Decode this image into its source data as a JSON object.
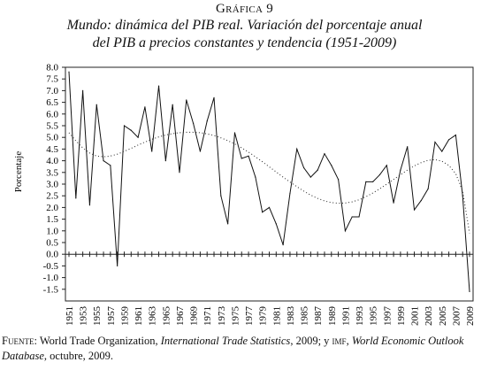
{
  "figure": {
    "label": "Gráfica 9",
    "title_line1": "Mundo: dinámica del PIB real. Variación del porcentaje anual",
    "title_line2": "del PIB a precios constantes y tendencia (1951-2009)"
  },
  "source": {
    "label": "Fuente:",
    "part1": " World Trade Organization, ",
    "italic1": "International Trade Statistics",
    "part2": ", 2009; y ",
    "org2": "imf",
    "part3": ", ",
    "italic2": "World Economic Outlook Database",
    "part4": ", octubre, 2009."
  },
  "chart_data": {
    "type": "line",
    "title": "",
    "ylabel": "Porcentaje",
    "xlabel": "",
    "ylim": [
      -2.0,
      8.0
    ],
    "ytick_labels": [
      "8.0",
      "7.5",
      "7.0",
      "6.5",
      "6.0",
      "5.5",
      "5.0",
      "4.5",
      "4.0",
      "3.5",
      "3.0",
      "2.5",
      "2.0",
      "1.5",
      "1.0",
      "0.5",
      "0.0",
      "-0.5",
      "-1.0",
      "-1.5"
    ],
    "ytick_values": [
      8.0,
      7.5,
      7.0,
      6.5,
      6.0,
      5.5,
      5.0,
      4.5,
      4.0,
      3.5,
      3.0,
      2.5,
      2.0,
      1.5,
      1.0,
      0.5,
      0.0,
      -0.5,
      -1.0,
      -1.5
    ],
    "x": [
      1951,
      1952,
      1953,
      1954,
      1955,
      1956,
      1957,
      1958,
      1959,
      1960,
      1961,
      1962,
      1963,
      1964,
      1965,
      1966,
      1967,
      1968,
      1969,
      1970,
      1971,
      1972,
      1973,
      1974,
      1975,
      1976,
      1977,
      1978,
      1979,
      1980,
      1981,
      1982,
      1983,
      1984,
      1985,
      1986,
      1987,
      1988,
      1989,
      1990,
      1991,
      1992,
      1993,
      1994,
      1995,
      1996,
      1997,
      1998,
      1999,
      2000,
      2001,
      2002,
      2003,
      2004,
      2005,
      2006,
      2007,
      2008,
      2009
    ],
    "xtick_labels": [
      "1951",
      "1953",
      "1955",
      "1957",
      "1959",
      "1961",
      "1963",
      "1965",
      "1967",
      "1969",
      "1971",
      "1973",
      "1975",
      "1977",
      "1979",
      "1981",
      "1983",
      "1985",
      "1987",
      "1989",
      "1991",
      "1993",
      "1995",
      "1997",
      "1999",
      "2001",
      "2003",
      "2005",
      "2007",
      "2009"
    ],
    "series": [
      {
        "style": "solid",
        "values": [
          7.8,
          2.4,
          7.0,
          2.1,
          6.4,
          4.0,
          3.8,
          -0.5,
          5.5,
          5.3,
          5.0,
          6.3,
          4.4,
          7.2,
          4.0,
          6.4,
          3.5,
          6.6,
          5.6,
          4.4,
          5.7,
          6.7,
          2.5,
          1.3,
          5.2,
          4.1,
          4.2,
          3.3,
          1.8,
          2.0,
          1.3,
          0.4,
          2.6,
          4.5,
          3.7,
          3.3,
          3.6,
          4.3,
          3.8,
          3.2,
          1.0,
          1.6,
          1.6,
          3.1,
          3.1,
          3.4,
          3.8,
          2.2,
          3.6,
          4.6,
          1.9,
          2.3,
          2.8,
          4.8,
          4.4,
          4.9,
          5.1,
          2.5,
          -1.6
        ]
      },
      {
        "style": "dotted",
        "values": [
          5.2,
          4.85,
          4.55,
          4.33,
          4.2,
          4.17,
          4.2,
          4.28,
          4.4,
          4.53,
          4.67,
          4.8,
          4.92,
          5.02,
          5.1,
          5.16,
          5.2,
          5.22,
          5.22,
          5.2,
          5.15,
          5.08,
          4.98,
          4.86,
          4.72,
          4.55,
          4.37,
          4.17,
          3.96,
          3.74,
          3.52,
          3.3,
          3.09,
          2.89,
          2.7,
          2.53,
          2.39,
          2.28,
          2.21,
          2.18,
          2.19,
          2.24,
          2.33,
          2.46,
          2.62,
          2.8,
          3.0,
          3.2,
          3.4,
          3.6,
          3.78,
          3.92,
          4.02,
          4.05,
          3.98,
          3.8,
          3.45,
          2.7,
          0.9
        ]
      }
    ]
  }
}
